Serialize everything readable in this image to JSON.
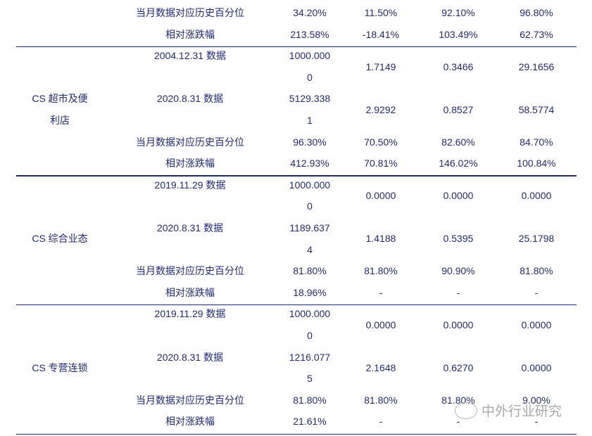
{
  "top_rows": [
    {
      "label": "当月数据对应历史百分位",
      "values": [
        "34.20%",
        "11.50%",
        "92.10%",
        "96.80%"
      ]
    },
    {
      "label": "相对涨跌幅",
      "values": [
        "213.58%",
        "-18.41%",
        "103.49%",
        "62.73%"
      ]
    }
  ],
  "groups": [
    {
      "name": [
        "CS 超市及便",
        "利店"
      ],
      "rows": [
        {
          "label": "2004.12.31 数据",
          "values": [
            [
              "1000.000",
              "0"
            ],
            "1.7149",
            "0.3466",
            "29.1656"
          ]
        },
        {
          "label": "2020.8.31 数据",
          "values": [
            [
              "5129.338",
              "1"
            ],
            "2.9292",
            "0.8527",
            "58.5774"
          ]
        },
        {
          "label": "当月数据对应历史百分位",
          "values": [
            "96.30%",
            "70.50%",
            "82.60%",
            "84.70%"
          ]
        },
        {
          "label": "相对涨跌幅",
          "values": [
            "412.93%",
            "70.81%",
            "146.02%",
            "100.84%"
          ]
        }
      ]
    },
    {
      "name": [
        "CS 综合业态"
      ],
      "rows": [
        {
          "label": "2019.11.29 数据",
          "values": [
            [
              "1000.000",
              "0"
            ],
            "0.0000",
            "0.0000",
            "0.0000"
          ]
        },
        {
          "label": "2020.8.31 数据",
          "values": [
            [
              "1189.637",
              "4"
            ],
            "1.4188",
            "0.5395",
            "25.1798"
          ]
        },
        {
          "label": "当月数据对应历史百分位",
          "values": [
            "81.80%",
            "81.80%",
            "90.90%",
            "81.80%"
          ]
        },
        {
          "label": "相对涨跌幅",
          "values": [
            "18.96%",
            "-",
            "-",
            "-"
          ]
        }
      ]
    },
    {
      "name": [
        "CS 专营连锁"
      ],
      "rows": [
        {
          "label": "2019.11.29 数据",
          "values": [
            [
              "1000.000",
              "0"
            ],
            "0.0000",
            "0.0000",
            "0.0000"
          ]
        },
        {
          "label": "2020.8.31 数据",
          "values": [
            [
              "1216.077",
              "5"
            ],
            "2.1648",
            "0.6270",
            "0.0000"
          ]
        },
        {
          "label": "当月数据对应历史百分位",
          "values": [
            "81.80%",
            "81.80%",
            "81.80%",
            "9.00%"
          ]
        },
        {
          "label": "相对涨跌幅",
          "values": [
            "21.61%",
            "-",
            "-",
            "-"
          ]
        }
      ]
    }
  ],
  "watermark": {
    "text": "中外行业研究",
    "icon": "wechat-icon"
  },
  "colors": {
    "text": "#1e2a78",
    "rule": "#1e2a6e"
  }
}
